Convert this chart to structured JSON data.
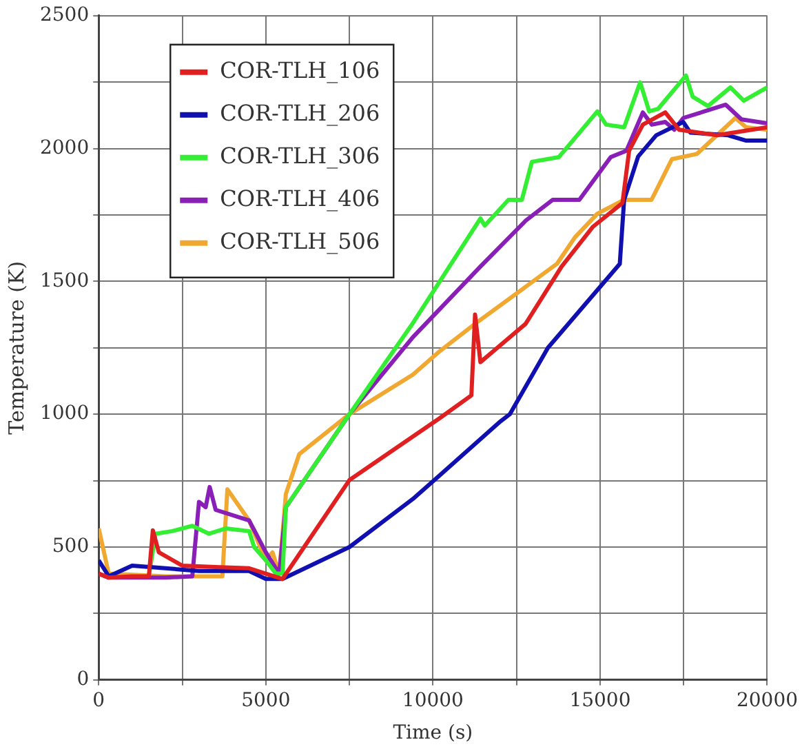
{
  "chart_data": {
    "type": "line",
    "xlabel": "Time (s)",
    "ylabel": "Temperature (K)",
    "xlim": [
      0,
      20000
    ],
    "ylim": [
      0,
      2500
    ],
    "xticks": [
      0,
      {
        "value": 2500,
        "label": null
      },
      5000,
      {
        "value": 7500,
        "label": null
      },
      10000,
      {
        "value": 12500,
        "label": null
      },
      15000,
      {
        "value": 17500,
        "label": null
      },
      20000
    ],
    "yticks": [
      0,
      {
        "value": 250,
        "label": null
      },
      500,
      {
        "value": 750,
        "label": null
      },
      1000,
      {
        "value": 1250,
        "label": null
      },
      1500,
      {
        "value": 1750,
        "label": null
      },
      2000,
      {
        "value": 2250,
        "label": null
      },
      2500
    ],
    "grid": true,
    "legend": "top left",
    "marker": "none",
    "line_style": "solid",
    "series": [
      {
        "name": "COR-TLH_106",
        "color": "#e02020",
        "x": [
          0,
          300,
          1000,
          1500,
          1620,
          1800,
          2500,
          3500,
          4500,
          5000,
          5500,
          7500,
          10200,
          11150,
          11260,
          11420,
          12770,
          13850,
          14790,
          15670,
          15870,
          16280,
          16950,
          17360,
          18500,
          20000
        ],
        "values": [
          400,
          385,
          390,
          390,
          563,
          480,
          430,
          425,
          420,
          400,
          380,
          752,
          985,
          1071,
          1375,
          1196,
          1340,
          1556,
          1706,
          1795,
          1992,
          2090,
          2136,
          2071,
          2050,
          2080
        ]
      },
      {
        "name": "COR-TLH_206",
        "color": "#1010b0",
        "x": [
          0,
          300,
          1000,
          2000,
          3000,
          4500,
          5000,
          5500,
          7500,
          9400,
          10200,
          12020,
          12300,
          13440,
          15590,
          15720,
          16140,
          16680,
          17490,
          17700,
          18830,
          19370,
          20000
        ],
        "values": [
          450,
          390,
          430,
          420,
          410,
          410,
          380,
          380,
          500,
          681,
          770,
          973,
          1000,
          1250,
          1566,
          1807,
          1970,
          2050,
          2100,
          2060,
          2050,
          2030,
          2030
        ]
      },
      {
        "name": "COR-TLH_306",
        "color": "#33ee33",
        "x": [
          1500,
          1700,
          2200,
          2800,
          3300,
          3800,
          4500,
          4650,
          5000,
          5300,
          5500,
          5600,
          7500,
          9400,
          11420,
          11550,
          12260,
          12660,
          12960,
          13770,
          14920,
          15180,
          15720,
          16200,
          16470,
          16740,
          17570,
          17770,
          18230,
          18900,
          19300,
          20000
        ],
        "values": [
          390,
          550,
          560,
          580,
          550,
          570,
          560,
          500,
          450,
          400,
          400,
          650,
          1000,
          1343,
          1737,
          1710,
          1807,
          1807,
          1950,
          1968,
          2140,
          2090,
          2080,
          2249,
          2140,
          2150,
          2275,
          2195,
          2160,
          2230,
          2180,
          2230
        ]
      },
      {
        "name": "COR-TLH_406",
        "color": "#8a1fb8",
        "x": [
          0,
          300,
          2000,
          2800,
          3000,
          3200,
          3320,
          3500,
          4500,
          5000,
          5400,
          5600,
          7500,
          9400,
          11420,
          12770,
          13580,
          14380,
          15320,
          15790,
          16280,
          16550,
          16950,
          17220,
          17490,
          18760,
          19230,
          20000
        ],
        "values": [
          400,
          385,
          385,
          390,
          670,
          650,
          726,
          640,
          600,
          480,
          400,
          650,
          1000,
          1290,
          1556,
          1728,
          1807,
          1807,
          1968,
          1992,
          2136,
          2090,
          2100,
          2071,
          2115,
          2165,
          2110,
          2095
        ]
      },
      {
        "name": "COR-TLH_506",
        "color": "#f0a830",
        "x": [
          0,
          300,
          2000,
          3700,
          3850,
          4500,
          5000,
          5200,
          5400,
          5600,
          6000,
          7500,
          9400,
          10200,
          11290,
          13710,
          14250,
          14920,
          15720,
          16540,
          17150,
          17900,
          19050,
          19370,
          20000
        ],
        "values": [
          570,
          400,
          390,
          390,
          717,
          600,
          450,
          480,
          400,
          700,
          850,
          1000,
          1149,
          1237,
          1343,
          1566,
          1666,
          1755,
          1807,
          1807,
          1960,
          1980,
          2115,
          2080,
          2071
        ]
      }
    ]
  }
}
